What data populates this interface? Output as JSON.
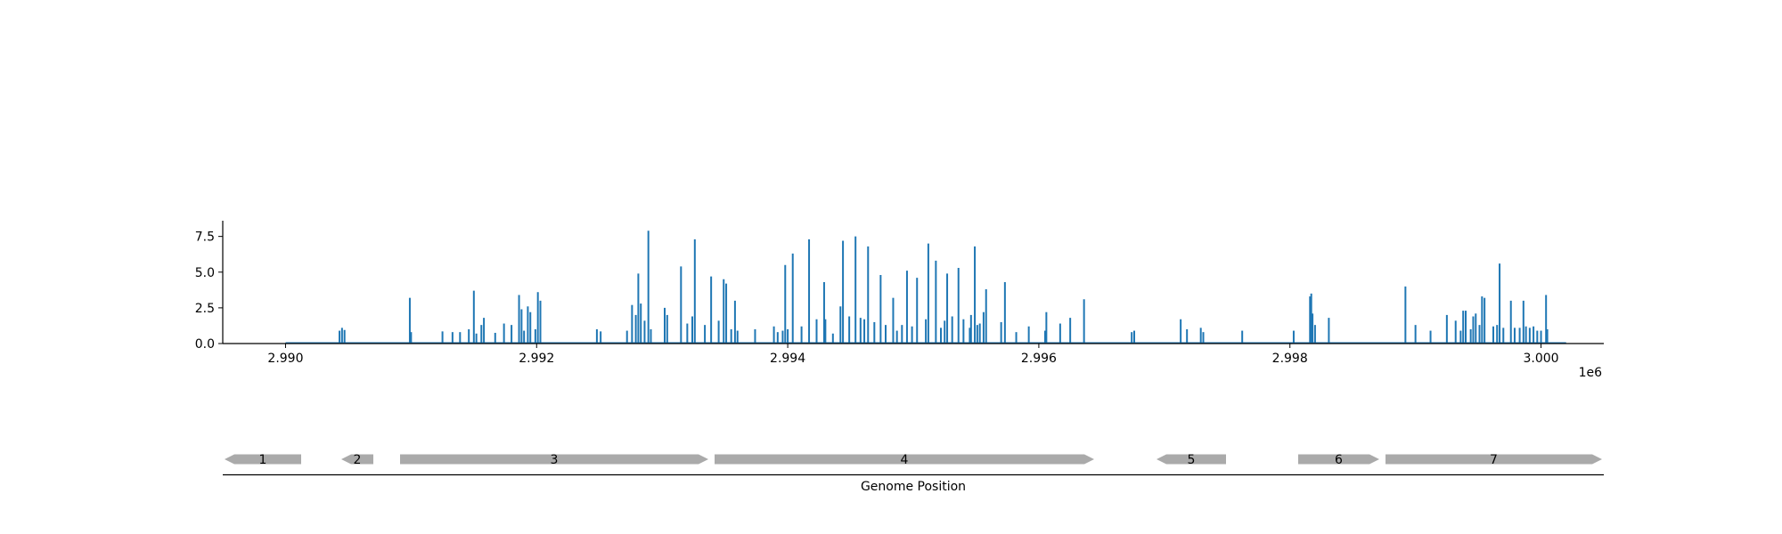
{
  "chart_data": [
    {
      "type": "bar",
      "title": "",
      "xlabel": "",
      "ylabel": "",
      "xlim": [
        2989500,
        3000500
      ],
      "ylim": [
        0,
        8.6
      ],
      "x_ticks": [
        2990000,
        2992000,
        2994000,
        2996000,
        2998000,
        3000000
      ],
      "x_tick_labels": [
        "2.990",
        "2.992",
        "2.994",
        "2.996",
        "2.998",
        "3.000"
      ],
      "x_offset_label": "1e6",
      "y_ticks": [
        0,
        2.5,
        5,
        7.5
      ],
      "y_tick_labels": [
        "0.0",
        "2.5",
        "5.0",
        "7.5"
      ],
      "baseline": [
        2990000,
        3000200
      ],
      "color": "#1f77b4",
      "points": [
        [
          2990430,
          0.9
        ],
        [
          2990450,
          1.1
        ],
        [
          2990470,
          0.95
        ],
        [
          2990990,
          3.2
        ],
        [
          2991000,
          0.8
        ],
        [
          2991250,
          0.85
        ],
        [
          2991330,
          0.8
        ],
        [
          2991390,
          0.8
        ],
        [
          2991460,
          1.0
        ],
        [
          2991500,
          3.7
        ],
        [
          2991520,
          0.7
        ],
        [
          2991560,
          1.3
        ],
        [
          2991580,
          1.8
        ],
        [
          2991670,
          0.75
        ],
        [
          2991740,
          1.4
        ],
        [
          2991800,
          1.3
        ],
        [
          2991860,
          3.4
        ],
        [
          2991880,
          2.4
        ],
        [
          2991900,
          0.9
        ],
        [
          2991930,
          2.6
        ],
        [
          2991950,
          2.2
        ],
        [
          2991990,
          1.0
        ],
        [
          2992010,
          3.6
        ],
        [
          2992030,
          3.0
        ],
        [
          2992480,
          1.0
        ],
        [
          2992510,
          0.85
        ],
        [
          2992720,
          0.9
        ],
        [
          2992760,
          2.7
        ],
        [
          2992790,
          2.0
        ],
        [
          2992810,
          4.9
        ],
        [
          2992830,
          2.8
        ],
        [
          2992860,
          1.6
        ],
        [
          2992890,
          7.9
        ],
        [
          2992910,
          1.0
        ],
        [
          2993020,
          2.5
        ],
        [
          2993040,
          2.0
        ],
        [
          2993150,
          5.4
        ],
        [
          2993200,
          1.4
        ],
        [
          2993240,
          1.9
        ],
        [
          2993260,
          7.3
        ],
        [
          2993340,
          1.3
        ],
        [
          2993390,
          4.7
        ],
        [
          2993450,
          1.6
        ],
        [
          2993490,
          4.5
        ],
        [
          2993510,
          4.2
        ],
        [
          2993550,
          1.0
        ],
        [
          2993580,
          3.0
        ],
        [
          2993600,
          0.9
        ],
        [
          2993740,
          1.0
        ],
        [
          2993890,
          1.2
        ],
        [
          2993920,
          0.8
        ],
        [
          2993960,
          0.9
        ],
        [
          2993980,
          5.5
        ],
        [
          2994000,
          1.0
        ],
        [
          2994040,
          6.3
        ],
        [
          2994110,
          1.2
        ],
        [
          2994170,
          7.3
        ],
        [
          2994230,
          1.7
        ],
        [
          2994290,
          4.3
        ],
        [
          2994300,
          1.7
        ],
        [
          2994360,
          0.7
        ],
        [
          2994420,
          2.6
        ],
        [
          2994440,
          7.2
        ],
        [
          2994490,
          1.9
        ],
        [
          2994540,
          7.5
        ],
        [
          2994580,
          1.8
        ],
        [
          2994610,
          1.7
        ],
        [
          2994640,
          6.8
        ],
        [
          2994690,
          1.5
        ],
        [
          2994740,
          4.8
        ],
        [
          2994780,
          1.3
        ],
        [
          2994840,
          3.2
        ],
        [
          2994870,
          0.9
        ],
        [
          2994910,
          1.3
        ],
        [
          2994950,
          5.1
        ],
        [
          2994990,
          1.2
        ],
        [
          2995030,
          4.6
        ],
        [
          2995100,
          1.7
        ],
        [
          2995120,
          7.0
        ],
        [
          2995180,
          5.8
        ],
        [
          2995220,
          1.1
        ],
        [
          2995250,
          1.6
        ],
        [
          2995270,
          4.9
        ],
        [
          2995310,
          1.9
        ],
        [
          2995360,
          5.3
        ],
        [
          2995400,
          1.7
        ],
        [
          2995450,
          1.1
        ],
        [
          2995460,
          2.0
        ],
        [
          2995490,
          6.8
        ],
        [
          2995510,
          1.3
        ],
        [
          2995530,
          1.4
        ],
        [
          2995560,
          2.2
        ],
        [
          2995580,
          3.8
        ],
        [
          2995700,
          1.5
        ],
        [
          2995730,
          4.3
        ],
        [
          2995820,
          0.8
        ],
        [
          2995920,
          1.2
        ],
        [
          2996050,
          0.9
        ],
        [
          2996060,
          2.2
        ],
        [
          2996170,
          1.4
        ],
        [
          2996250,
          1.8
        ],
        [
          2996360,
          3.1
        ],
        [
          2996740,
          0.8
        ],
        [
          2996760,
          0.9
        ],
        [
          2997130,
          1.7
        ],
        [
          2997180,
          1.0
        ],
        [
          2997290,
          1.1
        ],
        [
          2997310,
          0.8
        ],
        [
          2997620,
          0.9
        ],
        [
          2998030,
          0.9
        ],
        [
          2998160,
          3.3
        ],
        [
          2998170,
          3.5
        ],
        [
          2998180,
          2.1
        ],
        [
          2998200,
          1.3
        ],
        [
          2998310,
          1.8
        ],
        [
          2998920,
          4.0
        ],
        [
          2999000,
          1.3
        ],
        [
          2999120,
          0.9
        ],
        [
          2999250,
          2.0
        ],
        [
          2999320,
          1.6
        ],
        [
          2999360,
          0.9
        ],
        [
          2999380,
          2.3
        ],
        [
          2999400,
          2.3
        ],
        [
          2999440,
          1.0
        ],
        [
          2999460,
          1.9
        ],
        [
          2999480,
          2.1
        ],
        [
          2999510,
          1.3
        ],
        [
          2999530,
          3.3
        ],
        [
          2999550,
          3.2
        ],
        [
          2999620,
          1.2
        ],
        [
          2999650,
          1.3
        ],
        [
          2999670,
          5.6
        ],
        [
          2999700,
          1.1
        ],
        [
          2999760,
          3.0
        ],
        [
          2999790,
          1.1
        ],
        [
          2999830,
          1.1
        ],
        [
          2999860,
          3.0
        ],
        [
          2999880,
          1.2
        ],
        [
          2999910,
          1.1
        ],
        [
          2999940,
          1.2
        ],
        [
          2999970,
          0.9
        ],
        [
          3000000,
          0.9
        ],
        [
          3000040,
          3.4
        ],
        [
          3000050,
          1.0
        ]
      ]
    },
    {
      "type": "gene-track",
      "xlabel": "Genome Position",
      "genes": [
        {
          "label": "1",
          "strand": "-"
        },
        {
          "label": "2",
          "strand": "-"
        },
        {
          "label": "3",
          "strand": "+"
        },
        {
          "label": "4",
          "strand": "+"
        },
        {
          "label": "5",
          "strand": "-"
        },
        {
          "label": "6",
          "strand": "+"
        },
        {
          "label": "7",
          "strand": "+"
        }
      ],
      "color": "#aaaaaa"
    }
  ]
}
